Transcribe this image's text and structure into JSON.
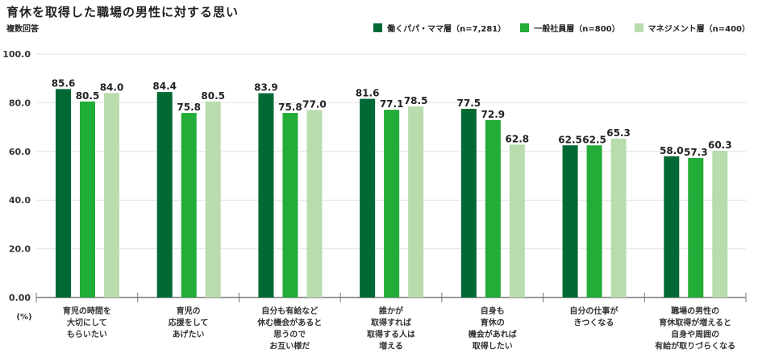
{
  "chart_data": {
    "type": "bar",
    "title": "育休を取得した職場の男性に対する思い",
    "subtitle": "複数回答",
    "ylabel": "(%)",
    "ylim": [
      0,
      100
    ],
    "yticks": [
      "0.00",
      "20.0",
      "40.0",
      "60.0",
      "80.0",
      "100.0"
    ],
    "grid": true,
    "legend_position": "top-right",
    "categories": [
      [
        "育児の時間を",
        "大切にして",
        "もらいたい"
      ],
      [
        "育児の",
        "応援をして",
        "あげたい"
      ],
      [
        "自分も有給など",
        "休む機会があると",
        "思うので",
        "お互い様だ"
      ],
      [
        "誰かが",
        "取得すれば",
        "取得する人は",
        "増える"
      ],
      [
        "自身も",
        "育休の",
        "機会があれば",
        "取得したい"
      ],
      [
        "自分の仕事が",
        "きつくなる"
      ],
      [
        "職場の男性の",
        "育休取得が増えると",
        "自身や周囲の",
        "有給が取りづらくなる"
      ]
    ],
    "series": [
      {
        "name": "働くパパ・ママ層（n=7,281）",
        "color": "#006934",
        "values": [
          85.6,
          84.4,
          83.9,
          81.6,
          77.5,
          62.5,
          58.0
        ]
      },
      {
        "name": "一般社員層（n=800）",
        "color": "#22ac38",
        "values": [
          80.5,
          75.8,
          75.8,
          77.1,
          72.9,
          62.5,
          57.3
        ]
      },
      {
        "name": "マネジメント層（n=400）",
        "color": "#b9dcae",
        "values": [
          84.0,
          80.5,
          77.0,
          78.5,
          62.8,
          65.3,
          60.3
        ]
      }
    ]
  }
}
